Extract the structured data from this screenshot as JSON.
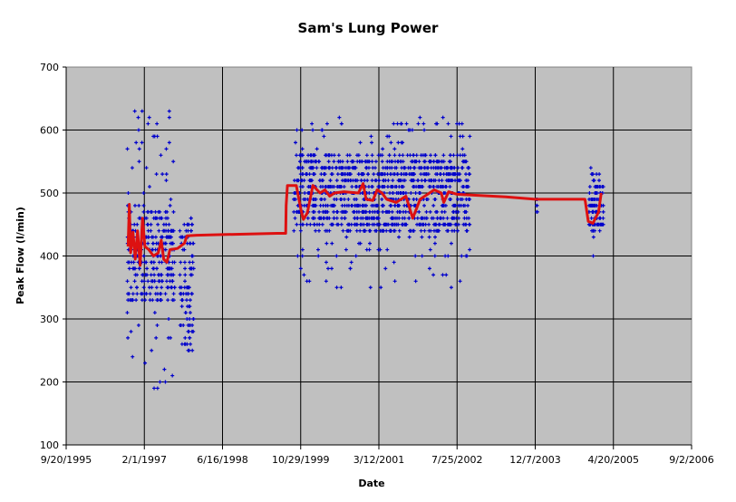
{
  "chart_data": {
    "type": "scatter",
    "title": "Sam's Lung Power",
    "xlabel": "Date",
    "ylabel": "Peak Flow (l/min)",
    "ylim": [
      100,
      700
    ],
    "yticks": [
      100,
      200,
      300,
      400,
      500,
      600,
      700
    ],
    "xlim": [
      "9/20/1995",
      "9/2/2006"
    ],
    "xticks": [
      "9/20/1995",
      "2/1/1997",
      "6/16/1998",
      "10/29/1999",
      "3/12/2001",
      "7/25/2002",
      "12/7/2003",
      "4/20/2005",
      "9/2/2006"
    ],
    "grid": true,
    "plot_background": "#c0c0c0",
    "legend": "none",
    "series": [
      {
        "name": "Peak Flow readings",
        "kind": "markers",
        "marker": "plus",
        "color": "#0000cc",
        "clusters": [
          {
            "date_range": [
              "10/1996",
              "8/1997"
            ],
            "value_range": [
              180,
              630
            ],
            "typical_range": [
              330,
              480
            ]
          },
          {
            "date_range": [
              "9/1997",
              "12/1997"
            ],
            "value_range": [
              250,
              460
            ]
          },
          {
            "date_range": [
              "9/1999",
              "10/2002"
            ],
            "value_range": [
              350,
              620
            ],
            "typical_range": [
              440,
              560
            ]
          },
          {
            "date_range": [
              "12/2003"
            ],
            "value_range": [
              465,
              495
            ]
          },
          {
            "date_range": [
              "11/2004",
              "2/2005"
            ],
            "value_range": [
              390,
              550
            ],
            "typical_range": [
              440,
              520
            ]
          }
        ]
      },
      {
        "name": "Moving average",
        "kind": "line",
        "color": "#dd1111",
        "points": [
          [
            "10/20/1996",
            415
          ],
          [
            "10/28/1996",
            482
          ],
          [
            "11/5/1996",
            405
          ],
          [
            "11/20/1996",
            438
          ],
          [
            "12/5/1996",
            395
          ],
          [
            "12/20/1996",
            440
          ],
          [
            "1/5/1997",
            385
          ],
          [
            "1/20/1997",
            460
          ],
          [
            "2/5/1997",
            415
          ],
          [
            "3/1/1997",
            410
          ],
          [
            "4/1/1997",
            400
          ],
          [
            "5/1/1997",
            405
          ],
          [
            "5/20/1997",
            425
          ],
          [
            "6/5/1997",
            395
          ],
          [
            "6/25/1997",
            390
          ],
          [
            "7/15/1997",
            410
          ],
          [
            "9/1/1997",
            412
          ],
          [
            "10/15/1997",
            420
          ],
          [
            "11/1/1997",
            432
          ],
          [
            "1/1/1998",
            433
          ],
          [
            "6/16/1998",
            434
          ],
          [
            "6/1/1999",
            436
          ],
          [
            "7/25/1999",
            436
          ],
          [
            "7/28/1999",
            480
          ],
          [
            "8/5/1999",
            512
          ],
          [
            "10/1/1999",
            512
          ],
          [
            "10/29/1999",
            475
          ],
          [
            "11/15/1999",
            458
          ],
          [
            "12/10/1999",
            468
          ],
          [
            "1/15/2000",
            512
          ],
          [
            "3/1/2000",
            500
          ],
          [
            "4/1/2000",
            505
          ],
          [
            "5/1/2000",
            495
          ],
          [
            "6/1/2000",
            500
          ],
          [
            "8/1/2000",
            502
          ],
          [
            "11/1/2000",
            500
          ],
          [
            "12/1/2000",
            515
          ],
          [
            "12/20/2000",
            490
          ],
          [
            "2/1/2001",
            488
          ],
          [
            "3/1/2001",
            505
          ],
          [
            "4/1/2001",
            500
          ],
          [
            "5/1/2001",
            490
          ],
          [
            "7/1/2001",
            485
          ],
          [
            "9/1/2001",
            495
          ],
          [
            "10/15/2001",
            460
          ],
          [
            "12/1/2001",
            490
          ],
          [
            "3/1/2002",
            505
          ],
          [
            "4/15/2002",
            500
          ],
          [
            "5/1/2002",
            485
          ],
          [
            "6/1/2002",
            502
          ],
          [
            "7/25/2002",
            498
          ],
          [
            "6/1/2003",
            494
          ],
          [
            "12/7/2003",
            490
          ],
          [
            "10/20/2004",
            490
          ],
          [
            "11/10/2004",
            455
          ],
          [
            "12/10/2004",
            452
          ],
          [
            "1/15/2005",
            470
          ],
          [
            "2/1/2005",
            500
          ]
        ]
      }
    ]
  }
}
